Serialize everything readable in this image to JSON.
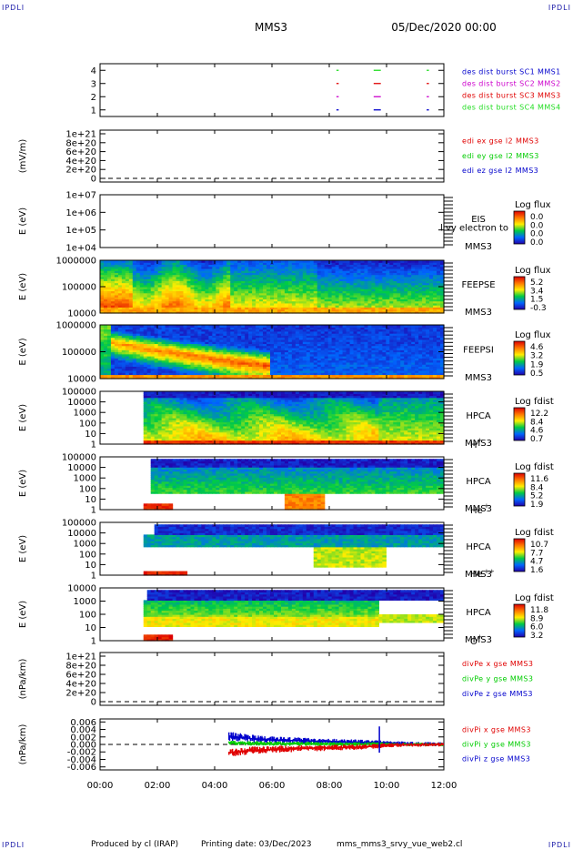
{
  "corner_tag": "IPDLI",
  "header": {
    "spacecraft": "MMS3",
    "datetime": "05/Dec/2020 00:00"
  },
  "footer": {
    "producer": "Produced by cl (IRAP)",
    "printing": "Printing date: 03/Dec/2023",
    "script": "mms_mms3_srvy_vue_web2.cl"
  },
  "colors": {
    "red": "#e00000",
    "green": "#00cc00",
    "blue": "#0000cc",
    "magenta": "#cc00cc",
    "brightgreen": "#22dd22"
  },
  "chart_data": [
    {
      "id": "burst",
      "type": "line",
      "yticks": [
        "1",
        "2",
        "3",
        "4"
      ],
      "ylim": [
        0.5,
        4.5
      ],
      "legend": [
        {
          "label": "des dist burst SC1 MMS1",
          "color": "#0000cc"
        },
        {
          "label": "des dist burst SC2 MMS2",
          "color": "#cc00cc"
        },
        {
          "label": "des dist burst SC3 MMS3",
          "color": "#e00000"
        },
        {
          "label": "des dist burst SC4 MMS4",
          "color": "#22dd22"
        }
      ],
      "segments": [
        {
          "sc": 4,
          "color": "#22dd22",
          "ranges": [
            [
              8.25,
              8.33
            ],
            [
              9.55,
              9.8
            ],
            [
              11.4,
              11.48
            ]
          ]
        },
        {
          "sc": 3,
          "color": "#e00000",
          "ranges": [
            [
              8.25,
              8.33
            ],
            [
              9.55,
              9.8
            ],
            [
              11.4,
              11.48
            ]
          ]
        },
        {
          "sc": 2,
          "color": "#cc00cc",
          "ranges": [
            [
              8.25,
              8.33
            ],
            [
              9.55,
              9.8
            ],
            [
              11.4,
              11.48
            ]
          ]
        },
        {
          "sc": 1,
          "color": "#0000cc",
          "ranges": [
            [
              8.25,
              8.33
            ],
            [
              9.55,
              9.8
            ],
            [
              11.4,
              11.48
            ]
          ]
        }
      ]
    },
    {
      "id": "edi",
      "type": "line",
      "ylabel": "(mV/m)",
      "yticks": [
        "0",
        "2e+20",
        "4e+20",
        "6e+20",
        "8e+20",
        "1e+21"
      ],
      "ylim": [
        0,
        1e+21
      ],
      "zero_line": true,
      "legend": [
        {
          "label": "edi ex gse l2 MMS3",
          "color": "#e00000"
        },
        {
          "label": "edi ey gse l2 MMS3",
          "color": "#00cc00"
        },
        {
          "label": "edi ez gse l2 MMS3",
          "color": "#0000cc"
        }
      ]
    },
    {
      "id": "eis",
      "type": "heatmap",
      "ylabel": "E (eV)",
      "yticks": [
        "1e+04",
        "1e+05",
        "1e+06",
        "1e+07"
      ],
      "ylim": [
        4,
        7
      ],
      "log": true,
      "right_label": [
        "EIS",
        "MMS3"
      ],
      "overlay_text": "l vy electron to",
      "colorbar": {
        "title": "Log flux",
        "ticks": [
          "0.0",
          "0.0",
          "0.0",
          "0.0"
        ]
      }
    },
    {
      "id": "feepse",
      "type": "heatmap",
      "ylabel": "E (eV)",
      "yticks": [
        "10000",
        "100000",
        "1000000"
      ],
      "ylim": [
        4,
        6
      ],
      "log": true,
      "right_label": [
        "FEEPSE",
        "MMS3"
      ],
      "colorbar": {
        "title": "Log flux",
        "ticks": [
          "5.2",
          "3.4",
          "1.5",
          "-0.3"
        ]
      },
      "profile": "feepse"
    },
    {
      "id": "feepsi",
      "type": "heatmap",
      "ylabel": "E (eV)",
      "yticks": [
        "10000",
        "100000",
        "1000000"
      ],
      "ylim": [
        4,
        6
      ],
      "log": true,
      "right_label": [
        "FEEPSI",
        "MMS3"
      ],
      "colorbar": {
        "title": "Log flux",
        "ticks": [
          "4.6",
          "3.2",
          "1.9",
          "0.5"
        ]
      },
      "profile": "feepsi"
    },
    {
      "id": "hpca_h",
      "type": "heatmap",
      "ylabel": "E (eV)",
      "yticks": [
        "1",
        "10",
        "100",
        "1000",
        "10000",
        "100000"
      ],
      "ylim": [
        0,
        5
      ],
      "log": true,
      "right_label": [
        "HPCA",
        "MMS3"
      ],
      "species": "H",
      "charge": "+",
      "colorbar": {
        "title": "Log fdist",
        "ticks": [
          "12.2",
          "8.4",
          "4.6",
          "0.7"
        ]
      },
      "profile": "hpca_h"
    },
    {
      "id": "hpca_he",
      "type": "heatmap",
      "ylabel": "E (eV)",
      "yticks": [
        "1",
        "10",
        "100",
        "1000",
        "10000",
        "100000"
      ],
      "ylim": [
        0,
        5
      ],
      "log": true,
      "right_label": [
        "HPCA",
        "MMS3"
      ],
      "species": "He",
      "charge": "+",
      "colorbar": {
        "title": "Log fdist",
        "ticks": [
          "11.6",
          "8.4",
          "5.2",
          "1.9"
        ]
      },
      "profile": "hpca_he"
    },
    {
      "id": "hpca_hepp",
      "type": "heatmap",
      "ylabel": "E (eV)",
      "yticks": [
        "1",
        "10",
        "100",
        "1000",
        "10000",
        "100000"
      ],
      "ylim": [
        0,
        5
      ],
      "log": true,
      "right_label": [
        "HPCA",
        "MMS3"
      ],
      "species": "He",
      "charge": "++",
      "colorbar": {
        "title": "Log fdist",
        "ticks": [
          "10.7",
          "7.7",
          "4.7",
          "1.6"
        ]
      },
      "profile": "hpca_hepp"
    },
    {
      "id": "hpca_o",
      "type": "heatmap",
      "ylabel": "E (eV)",
      "yticks": [
        "1",
        "10",
        "100",
        "1000",
        "10000"
      ],
      "ylim": [
        0,
        4.3
      ],
      "log": true,
      "right_label": [
        "HPCA",
        "MMS3"
      ],
      "species": "O",
      "charge": "+",
      "colorbar": {
        "title": "Log fdist",
        "ticks": [
          "11.8",
          "8.9",
          "6.0",
          "3.2"
        ]
      },
      "profile": "hpca_o"
    },
    {
      "id": "divpe",
      "type": "line",
      "ylabel": "(nPa/km)",
      "yticks": [
        "0",
        "2e+20",
        "4e+20",
        "6e+20",
        "8e+20",
        "1e+21"
      ],
      "ylim": [
        0,
        1e+21
      ],
      "zero_line": true,
      "legend": [
        {
          "label": "divPe x gse MMS3",
          "color": "#e00000"
        },
        {
          "label": "divPe y gse MMS3",
          "color": "#00cc00"
        },
        {
          "label": "divPe z gse MMS3",
          "color": "#0000cc"
        }
      ]
    },
    {
      "id": "divpi",
      "type": "line",
      "ylabel": "(nPa/km)",
      "yticks": [
        "-0.006",
        "-0.004",
        "-0.002",
        "0.000",
        "0.002",
        "0.004",
        "0.006"
      ],
      "ylim": [
        -0.0068,
        0.0068
      ],
      "zero_line": true,
      "legend": [
        {
          "label": "divPi x gse MMS3",
          "color": "#e00000"
        },
        {
          "label": "divPi y gse MMS3",
          "color": "#00cc00"
        },
        {
          "label": "divPi z gse MMS3",
          "color": "#0000cc"
        }
      ],
      "series": [
        {
          "name": "divPi z gse MMS3",
          "color": "#0000cc",
          "x": [
            4.5,
            5.0,
            5.5,
            6.0,
            6.5,
            7.0,
            7.5,
            8.0,
            8.5,
            9.0,
            9.5,
            9.8,
            10.2,
            10.8,
            11.5,
            12.0
          ],
          "y": [
            0.0022,
            0.0018,
            0.0014,
            0.0012,
            0.0011,
            0.001,
            0.0009,
            0.0008,
            0.0007,
            0.0006,
            0.0005,
            0.0004,
            0.0003,
            0.0002,
            0.0001,
            0.0001
          ]
        },
        {
          "name": "divPi y gse MMS3",
          "color": "#00cc00",
          "x": [
            4.5,
            5.0,
            5.5,
            6.0,
            6.5,
            7.0,
            7.5,
            8.0,
            8.5,
            9.0,
            9.5,
            9.8,
            10.2,
            10.8,
            11.5,
            12.0
          ],
          "y": [
            0.0004,
            0.0003,
            0.0003,
            0.0002,
            0.0002,
            0.0002,
            0.0002,
            0.0001,
            0.0001,
            0.0001,
            0.0001,
            0.0001,
            0.0,
            0.0,
            0.0,
            0.0
          ]
        },
        {
          "name": "divPi x gse MMS3",
          "color": "#e00000",
          "x": [
            4.5,
            5.0,
            5.5,
            6.0,
            6.5,
            7.0,
            7.5,
            8.0,
            8.5,
            9.0,
            9.5,
            9.8,
            10.2,
            10.8,
            11.5,
            12.0
          ],
          "y": [
            -0.0022,
            -0.0018,
            -0.0015,
            -0.0013,
            -0.0012,
            -0.0011,
            -0.001,
            -0.0009,
            -0.0008,
            -0.0007,
            -0.0005,
            -0.0004,
            -0.0002,
            -0.0001,
            -0.0001,
            0.0
          ]
        }
      ]
    }
  ],
  "xaxis": {
    "ticks": [
      "00:00",
      "02:00",
      "04:00",
      "06:00",
      "08:00",
      "10:00",
      "12:00"
    ],
    "xlim": [
      0,
      12
    ]
  }
}
